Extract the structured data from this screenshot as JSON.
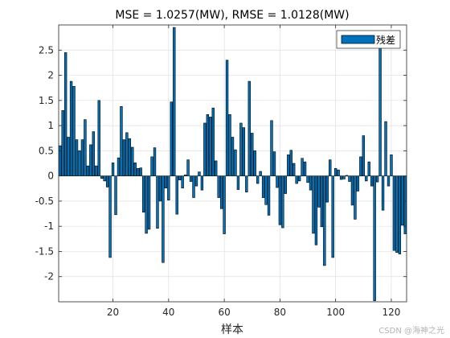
{
  "chart_data": {
    "type": "bar",
    "title": "MSE = 1.0257(MW), RMSE = 1.0128(MW)",
    "xlabel": "样本",
    "ylabel": "",
    "xlim": [
      0.5,
      125.5
    ],
    "ylim": [
      -2.5,
      3.0
    ],
    "x_ticks": [
      20,
      40,
      60,
      80,
      100,
      120
    ],
    "y_ticks": [
      -2,
      -1.5,
      -1,
      -0.5,
      0,
      0.5,
      1,
      1.5,
      2,
      2.5
    ],
    "grid": true,
    "legend_position": "top-right",
    "series": [
      {
        "name": "残差",
        "color": "#0072BD",
        "values": [
          0.6,
          1.3,
          2.45,
          0.77,
          1.88,
          1.78,
          0.72,
          0.5,
          0.72,
          1.12,
          0.2,
          0.62,
          0.88,
          0.2,
          1.5,
          -0.05,
          -0.1,
          -0.22,
          -1.62,
          0.26,
          -0.77,
          0.36,
          1.38,
          0.72,
          0.86,
          0.74,
          0.57,
          0.26,
          0.15,
          0.16,
          -0.72,
          -1.14,
          -1.06,
          0.38,
          0.56,
          -1.04,
          -0.5,
          -1.72,
          -0.24,
          -0.48,
          1.47,
          2.95,
          -0.76,
          -0.08,
          -0.24,
          0.02,
          0.32,
          -0.11,
          -0.43,
          -0.2,
          0.08,
          -0.28,
          1.05,
          1.22,
          1.17,
          1.35,
          0.3,
          -0.43,
          -0.65,
          -1.15,
          2.3,
          1.22,
          0.77,
          0.52,
          -0.27,
          1.05,
          0.96,
          -0.32,
          1.88,
          0.85,
          0.5,
          -0.15,
          0.09,
          -0.43,
          -0.57,
          -0.78,
          1.1,
          0.48,
          -0.23,
          -0.97,
          -1.03,
          -0.35,
          0.42,
          0.51,
          0.25,
          -0.15,
          -0.1,
          0.35,
          0.28,
          -0.13,
          -0.28,
          -1.14,
          -1.37,
          -0.62,
          -1.01,
          -1.78,
          -0.52,
          0.32,
          -1.62,
          0.15,
          0.12,
          -0.07,
          -0.06,
          0.01,
          -0.11,
          -0.58,
          -0.86,
          -0.3,
          0.38,
          0.8,
          -0.1,
          0.28,
          -0.2,
          -2.48,
          -0.12,
          2.85,
          -0.68,
          1.08,
          -0.2,
          0.42,
          -1.48,
          -1.52,
          -1.55,
          -0.98,
          -1.15
        ]
      }
    ]
  },
  "watermark": "CSDN @海神之光"
}
